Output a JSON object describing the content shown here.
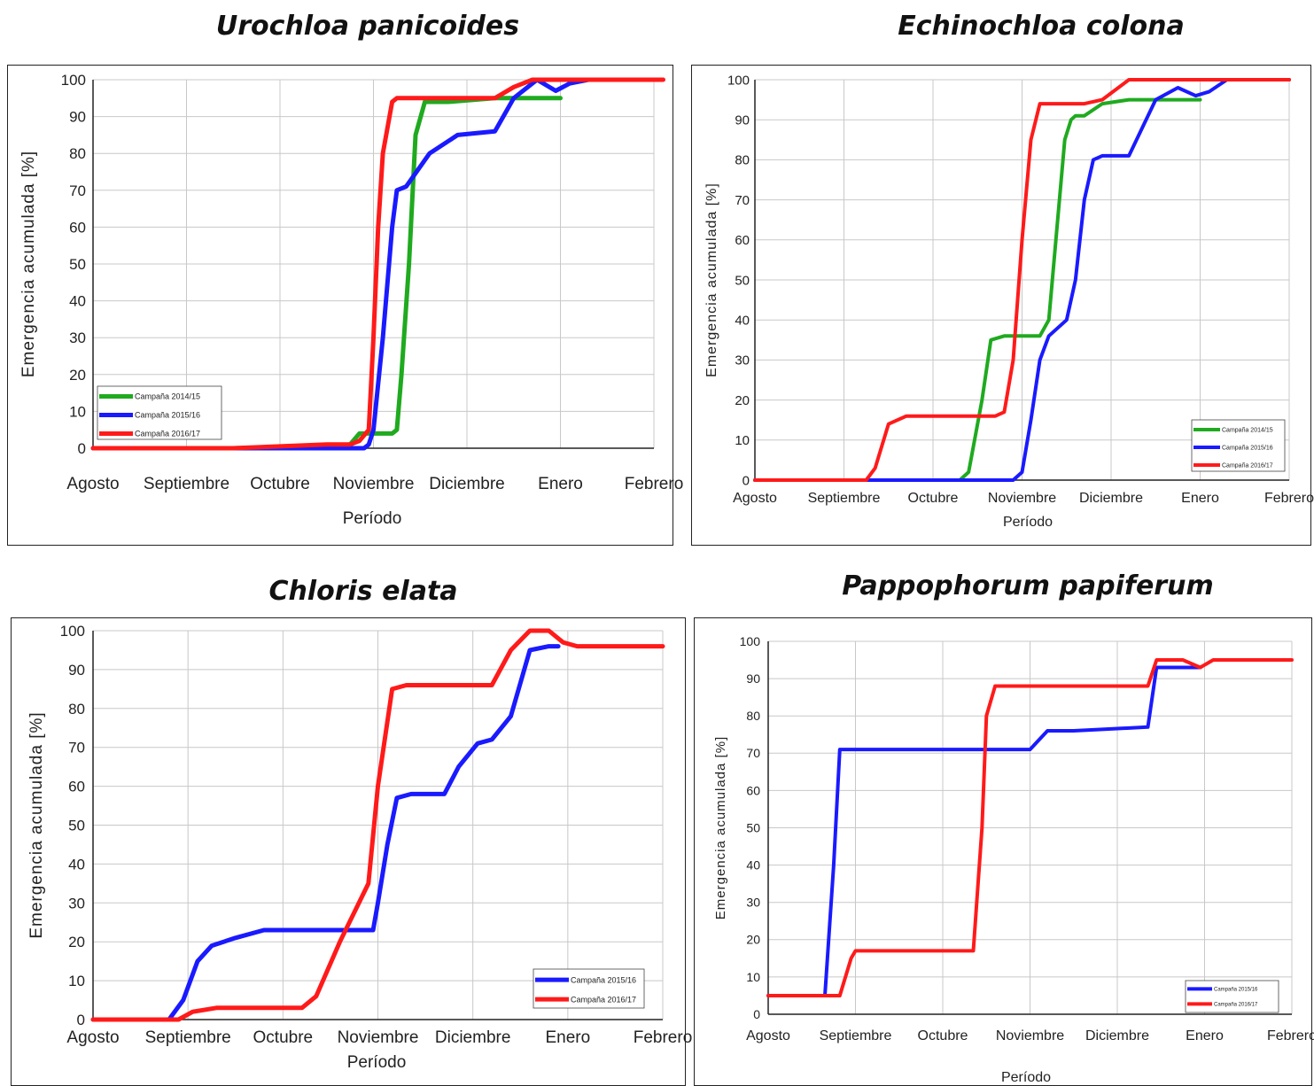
{
  "chart_data": [
    {
      "type": "line",
      "title": "Urochloa panicoides",
      "xlabel": "Período",
      "ylabel": "Emergencia acumulada [%]",
      "categories": [
        "Agosto",
        "Septiembre",
        "Octubre",
        "Noviembre",
        "Diciembre",
        "Enero",
        "Febrero"
      ],
      "yticks": [
        0,
        10,
        20,
        30,
        40,
        50,
        60,
        70,
        80,
        90,
        100
      ],
      "ylim": [
        0,
        100
      ],
      "grid": true,
      "legend_position": "bottom-left",
      "series": [
        {
          "name": "Campaña 2014/15",
          "color": "#1faa1f",
          "x": [
            0,
            1.5,
            2.5,
            2.75,
            2.85,
            3.0,
            3.1,
            3.2,
            3.25,
            3.3,
            3.38,
            3.45,
            3.55,
            3.8,
            4.3,
            5.0
          ],
          "y": [
            0,
            0,
            0.5,
            1,
            4,
            4,
            4,
            4,
            5,
            20,
            50,
            85,
            94,
            94,
            95,
            95
          ]
        },
        {
          "name": "Campaña 2015/16",
          "color": "#1a1aff",
          "x": [
            0,
            1.5,
            2.5,
            2.9,
            2.95,
            3.0,
            3.1,
            3.2,
            3.25,
            3.35,
            3.6,
            3.9,
            4.3,
            4.5,
            4.75,
            4.95,
            5.1,
            5.3,
            5.5
          ],
          "y": [
            0,
            0,
            0,
            0,
            1,
            5,
            30,
            60,
            70,
            71,
            80,
            85,
            86,
            95,
            100,
            97,
            99,
            100,
            100
          ]
        },
        {
          "name": "Campaña 2016/17",
          "color": "#ff1a1a",
          "x": [
            0,
            1.5,
            2.5,
            2.75,
            2.85,
            2.95,
            3.0,
            3.05,
            3.1,
            3.2,
            3.25,
            3.4,
            3.8,
            4.3,
            4.5,
            4.7,
            5.0,
            5.5,
            6.1
          ],
          "y": [
            0,
            0,
            1,
            1,
            2,
            5,
            30,
            60,
            80,
            94,
            95,
            95,
            95,
            95,
            98,
            100,
            100,
            100,
            100
          ]
        }
      ]
    },
    {
      "type": "line",
      "title": "Echinochloa colona",
      "xlabel": "Período",
      "ylabel": "Emergencia acumulada [%]",
      "categories": [
        "Agosto",
        "Septiembre",
        "Octubre",
        "Noviembre",
        "Diciembre",
        "Enero",
        "Febrero"
      ],
      "yticks": [
        0,
        10,
        20,
        30,
        40,
        50,
        60,
        70,
        80,
        90,
        100
      ],
      "ylim": [
        0,
        100
      ],
      "grid": true,
      "legend_position": "bottom-right",
      "series": [
        {
          "name": "Campaña 2014/15",
          "color": "#1faa1f",
          "x": [
            0,
            2.0,
            2.3,
            2.4,
            2.55,
            2.65,
            2.8,
            3.2,
            3.3,
            3.38,
            3.48,
            3.55,
            3.6,
            3.7,
            3.9,
            4.2,
            4.8,
            5.0
          ],
          "y": [
            0,
            0,
            0,
            2,
            20,
            35,
            36,
            36,
            40,
            60,
            85,
            90,
            91,
            91,
            94,
            95,
            95,
            95
          ]
        },
        {
          "name": "Campaña 2015/16",
          "color": "#1a1aff",
          "x": [
            0,
            2.0,
            2.9,
            3.0,
            3.1,
            3.2,
            3.3,
            3.5,
            3.6,
            3.7,
            3.8,
            3.9,
            4.2,
            4.5,
            4.75,
            4.95,
            5.1,
            5.3,
            5.5,
            6.0
          ],
          "y": [
            0,
            0,
            0,
            2,
            15,
            30,
            36,
            40,
            50,
            70,
            80,
            81,
            81,
            95,
            98,
            96,
            97,
            100,
            100,
            100
          ]
        },
        {
          "name": "Campaña 2016/17",
          "color": "#ff1a1a",
          "x": [
            0,
            1.25,
            1.35,
            1.5,
            1.7,
            2.7,
            2.8,
            2.9,
            3.0,
            3.1,
            3.2,
            3.4,
            3.7,
            3.9,
            4.2,
            4.5,
            4.8,
            5.2,
            5.5,
            6.0
          ],
          "y": [
            0,
            0,
            3,
            14,
            16,
            16,
            17,
            30,
            60,
            85,
            94,
            94,
            94,
            95,
            100,
            100,
            100,
            100,
            100,
            100
          ]
        }
      ]
    },
    {
      "type": "line",
      "title": "Chloris elata",
      "xlabel": "Período",
      "ylabel": "Emergencia acumulada [%]",
      "categories": [
        "Agosto",
        "Septiembre",
        "Octubre",
        "Noviembre",
        "Diciembre",
        "Enero",
        "Febrero"
      ],
      "yticks": [
        0,
        10,
        20,
        30,
        40,
        50,
        60,
        70,
        80,
        90,
        100
      ],
      "ylim": [
        0,
        100
      ],
      "grid": true,
      "legend_position": "bottom-right",
      "series": [
        {
          "name": "Campaña 2015/16",
          "color": "#1a1aff",
          "x": [
            0,
            0.8,
            0.95,
            1.1,
            1.25,
            1.5,
            1.8,
            2.5,
            2.95,
            3.0,
            3.1,
            3.2,
            3.35,
            3.7,
            3.85,
            4.05,
            4.2,
            4.4,
            4.6,
            4.8,
            4.9
          ],
          "y": [
            0,
            0,
            5,
            15,
            19,
            21,
            23,
            23,
            23,
            30,
            45,
            57,
            58,
            58,
            65,
            71,
            72,
            78,
            95,
            96,
            96
          ]
        },
        {
          "name": "Campaña 2016/17",
          "color": "#ff1a1a",
          "x": [
            0,
            0.9,
            1.05,
            1.3,
            2.0,
            2.2,
            2.35,
            2.6,
            2.9,
            3.0,
            3.15,
            3.3,
            3.5,
            4.2,
            4.4,
            4.6,
            4.8,
            4.95,
            5.1,
            5.5,
            6.0
          ],
          "y": [
            0,
            0,
            2,
            3,
            3,
            3,
            6,
            20,
            35,
            60,
            85,
            86,
            86,
            86,
            95,
            100,
            100,
            97,
            96,
            96,
            96
          ]
        }
      ]
    },
    {
      "type": "line",
      "title": "Pappophorum  papiferum",
      "xlabel": "Período",
      "ylabel": "Emergencia acumulada [%]",
      "categories": [
        "Agosto",
        "Septiembre",
        "Octubre",
        "Noviembre",
        "Diciembre",
        "Enero",
        "Febrero"
      ],
      "yticks": [
        0,
        10,
        20,
        30,
        40,
        50,
        60,
        70,
        80,
        90,
        100
      ],
      "ylim": [
        0,
        100
      ],
      "grid": true,
      "legend_position": "bottom-right",
      "series": [
        {
          "name": "Campaña 2015/16",
          "color": "#1a1aff",
          "x": [
            0,
            0.65,
            0.75,
            0.82,
            1.5,
            2.5,
            3.0,
            3.2,
            3.5,
            4.35,
            4.45,
            4.6,
            4.95
          ],
          "y": [
            5,
            5,
            40,
            71,
            71,
            71,
            71,
            76,
            76,
            77,
            93,
            93,
            93
          ]
        },
        {
          "name": "Campaña 2016/17",
          "color": "#ff1a1a",
          "x": [
            0,
            0.82,
            0.95,
            1.0,
            2.0,
            2.35,
            2.45,
            2.5,
            2.6,
            3.5,
            4.35,
            4.45,
            4.75,
            4.95,
            5.1,
            5.3,
            6.0
          ],
          "y": [
            5,
            5,
            15,
            17,
            17,
            17,
            50,
            80,
            88,
            88,
            88,
            95,
            95,
            93,
            95,
            95,
            95
          ]
        }
      ]
    }
  ]
}
